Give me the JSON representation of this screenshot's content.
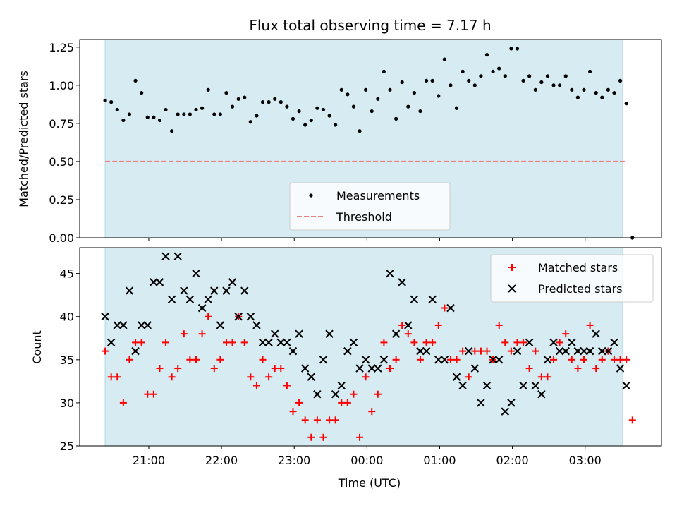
{
  "colors": {
    "band": "#add8e6",
    "measurement": "#000000",
    "threshold": "#f08080",
    "matched": "#ff0000",
    "predicted": "#000000"
  },
  "chart_data": [
    {
      "type": "scatter",
      "title": "Flux total observing time = 7.17 h",
      "xlabel": "",
      "ylabel": "Matched/Predicted stars",
      "ylim": [
        0,
        1.3
      ],
      "yticks": [
        "0.00",
        "0.25",
        "0.50",
        "0.75",
        "1.00",
        "1.25"
      ],
      "xlim": [
        "20:03",
        "04:03"
      ],
      "shaded_band": [
        "20:24",
        "03:31"
      ],
      "legend_position": "lower-center",
      "series": [
        {
          "name": "Measurements",
          "marker": "dot",
          "x": [
            "20:24",
            "20:29",
            "20:34",
            "20:39",
            "20:44",
            "20:49",
            "20:54",
            "20:59",
            "21:04",
            "21:09",
            "21:14",
            "21:19",
            "21:24",
            "21:29",
            "21:34",
            "21:39",
            "21:44",
            "21:49",
            "21:54",
            "21:59",
            "22:04",
            "22:09",
            "22:14",
            "22:19",
            "22:24",
            "22:29",
            "22:34",
            "22:39",
            "22:44",
            "22:49",
            "22:54",
            "22:59",
            "23:04",
            "23:09",
            "23:14",
            "23:19",
            "23:24",
            "23:29",
            "23:34",
            "23:39",
            "23:44",
            "23:49",
            "23:54",
            "23:59",
            "00:04",
            "00:09",
            "00:14",
            "00:19",
            "00:24",
            "00:29",
            "00:34",
            "00:39",
            "00:44",
            "00:49",
            "00:54",
            "00:59",
            "01:04",
            "01:09",
            "01:14",
            "01:19",
            "01:24",
            "01:29",
            "01:34",
            "01:39",
            "01:44",
            "01:49",
            "01:54",
            "01:59",
            "02:04",
            "02:09",
            "02:14",
            "02:19",
            "02:24",
            "02:29",
            "02:34",
            "02:39",
            "02:44",
            "02:49",
            "02:54",
            "02:59",
            "03:04",
            "03:09",
            "03:14",
            "03:19",
            "03:24",
            "03:29",
            "03:34"
          ],
          "y": [
            0.9,
            0.89,
            0.84,
            0.77,
            0.81,
            1.03,
            0.95,
            0.79,
            0.79,
            0.77,
            0.84,
            0.7,
            0.81,
            0.81,
            0.81,
            0.84,
            0.85,
            0.97,
            0.81,
            0.81,
            0.95,
            0.86,
            0.91,
            0.92,
            0.76,
            0.8,
            0.89,
            0.89,
            0.91,
            0.89,
            0.86,
            0.78,
            0.83,
            0.74,
            0.77,
            0.85,
            0.84,
            0.8,
            0.74,
            0.97,
            0.94,
            0.86,
            0.7,
            0.97,
            0.83,
            0.91,
            1.09,
            0.97,
            0.78,
            1.02,
            0.86,
            0.95,
            0.83,
            1.03,
            1.03,
            0.93,
            1.17,
            1.0,
            0.85,
            1.09,
            1.03,
            1.0,
            1.06,
            1.2,
            1.09,
            1.11,
            1.06,
            1.24,
            1.24,
            1.03,
            1.06,
            0.97,
            1.02,
            1.06,
            1.0,
            1.0,
            1.06,
            0.97,
            0.92,
            0.97,
            1.09,
            0.95,
            0.92,
            0.97,
            0.95,
            1.03,
            0.88
          ]
        },
        {
          "name": "Threshold",
          "marker": "dashed-line",
          "x": [
            "20:24",
            "03:34"
          ],
          "y": [
            0.5,
            0.5
          ]
        }
      ],
      "extra_points": [
        {
          "x": "03:39",
          "y": 0.0
        }
      ]
    },
    {
      "type": "scatter",
      "title": "",
      "xlabel": "Time (UTC)",
      "ylabel": "Count",
      "ylim": [
        25,
        48
      ],
      "yticks": [
        "25",
        "30",
        "35",
        "40",
        "45"
      ],
      "xticks": [
        "21:00",
        "22:00",
        "23:00",
        "00:00",
        "01:00",
        "02:00",
        "03:00"
      ],
      "xlim": [
        "20:03",
        "04:03"
      ],
      "shaded_band": [
        "20:24",
        "03:31"
      ],
      "legend_position": "upper-right",
      "series": [
        {
          "name": "Matched stars",
          "marker": "plus",
          "x": [
            "20:24",
            "20:29",
            "20:34",
            "20:39",
            "20:44",
            "20:49",
            "20:54",
            "20:59",
            "21:04",
            "21:09",
            "21:14",
            "21:19",
            "21:24",
            "21:29",
            "21:34",
            "21:39",
            "21:44",
            "21:49",
            "21:54",
            "21:59",
            "22:04",
            "22:09",
            "22:14",
            "22:19",
            "22:24",
            "22:29",
            "22:34",
            "22:39",
            "22:44",
            "22:49",
            "22:54",
            "22:59",
            "23:04",
            "23:09",
            "23:14",
            "23:19",
            "23:24",
            "23:29",
            "23:34",
            "23:39",
            "23:44",
            "23:49",
            "23:54",
            "23:59",
            "00:04",
            "00:09",
            "00:14",
            "00:19",
            "00:24",
            "00:29",
            "00:34",
            "00:39",
            "00:44",
            "00:49",
            "00:54",
            "00:59",
            "01:04",
            "01:09",
            "01:14",
            "01:19",
            "01:24",
            "01:29",
            "01:34",
            "01:39",
            "01:44",
            "01:49",
            "01:54",
            "01:59",
            "02:04",
            "02:09",
            "02:14",
            "02:19",
            "02:24",
            "02:29",
            "02:34",
            "02:39",
            "02:44",
            "02:49",
            "02:54",
            "02:59",
            "03:04",
            "03:09",
            "03:14",
            "03:19",
            "03:24",
            "03:29",
            "03:34",
            "03:39"
          ],
          "y": [
            36,
            33,
            33,
            30,
            35,
            37,
            37,
            31,
            31,
            34,
            37,
            33,
            34,
            38,
            35,
            35,
            38,
            40,
            34,
            35,
            37,
            37,
            40,
            37,
            33,
            32,
            35,
            33,
            34,
            34,
            32,
            29,
            30,
            28,
            26,
            28,
            26,
            28,
            28,
            30,
            30,
            31,
            26,
            33,
            29,
            31,
            37,
            34,
            35,
            39,
            38,
            37,
            35,
            37,
            37,
            39,
            41,
            35,
            35,
            36,
            33,
            36,
            36,
            36,
            35,
            39,
            37,
            36,
            37,
            37,
            34,
            36,
            33,
            33,
            35,
            37,
            38,
            35,
            34,
            35,
            39,
            34,
            35,
            36,
            35,
            35,
            35,
            28
          ]
        },
        {
          "name": "Predicted stars",
          "marker": "x",
          "x": [
            "20:24",
            "20:29",
            "20:34",
            "20:39",
            "20:44",
            "20:49",
            "20:54",
            "20:59",
            "21:04",
            "21:09",
            "21:14",
            "21:19",
            "21:24",
            "21:29",
            "21:34",
            "21:39",
            "21:44",
            "21:49",
            "21:54",
            "21:59",
            "22:04",
            "22:09",
            "22:14",
            "22:19",
            "22:24",
            "22:29",
            "22:34",
            "22:39",
            "22:44",
            "22:49",
            "22:54",
            "22:59",
            "23:04",
            "23:09",
            "23:14",
            "23:19",
            "23:24",
            "23:29",
            "23:34",
            "23:39",
            "23:44",
            "23:49",
            "23:54",
            "23:59",
            "00:04",
            "00:09",
            "00:14",
            "00:19",
            "00:24",
            "00:29",
            "00:34",
            "00:39",
            "00:44",
            "00:49",
            "00:54",
            "00:59",
            "01:04",
            "01:09",
            "01:14",
            "01:19",
            "01:24",
            "01:29",
            "01:34",
            "01:39",
            "01:44",
            "01:49",
            "01:54",
            "01:59",
            "02:04",
            "02:09",
            "02:14",
            "02:19",
            "02:24",
            "02:29",
            "02:34",
            "02:39",
            "02:44",
            "02:49",
            "02:54",
            "02:59",
            "03:04",
            "03:09",
            "03:14",
            "03:19",
            "03:24",
            "03:29",
            "03:34"
          ],
          "y": [
            40,
            37,
            39,
            39,
            43,
            36,
            39,
            39,
            44,
            44,
            47,
            42,
            47,
            43,
            42,
            45,
            41,
            42,
            43,
            39,
            43,
            44,
            40,
            43,
            40,
            39,
            37,
            37,
            38,
            37,
            37,
            36,
            38,
            34,
            33,
            31,
            35,
            38,
            31,
            32,
            36,
            37,
            34,
            35,
            34,
            34,
            35,
            45,
            38,
            44,
            39,
            42,
            36,
            36,
            42,
            35,
            35,
            41,
            33,
            32,
            36,
            34,
            30,
            32,
            35,
            35,
            29,
            30,
            36,
            32,
            37,
            32,
            31,
            35,
            37,
            36,
            36,
            37,
            36,
            36,
            36,
            38,
            36,
            36,
            37,
            34,
            32
          ]
        }
      ]
    }
  ]
}
